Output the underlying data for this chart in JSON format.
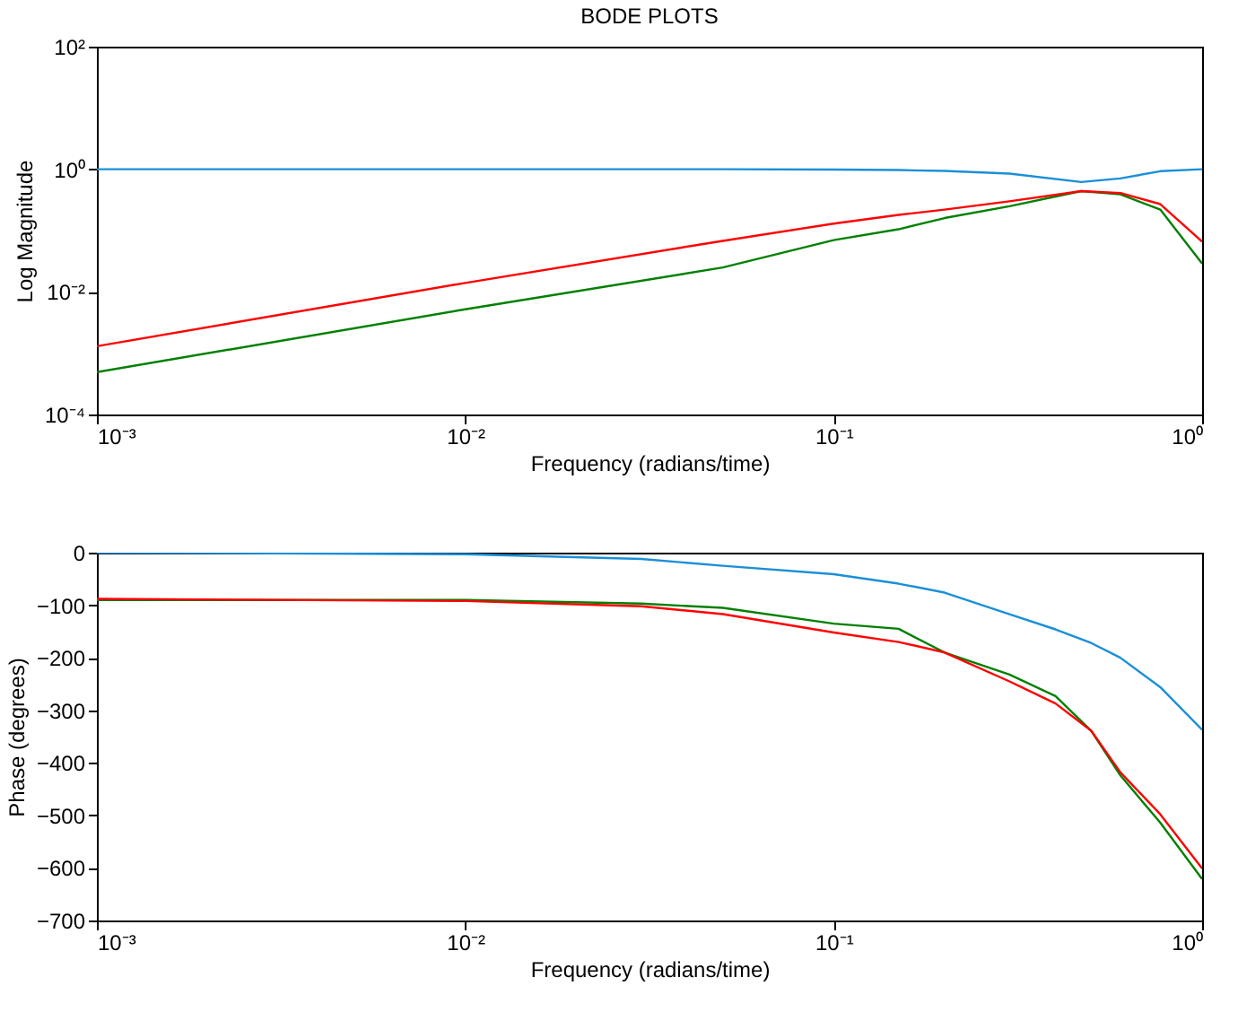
{
  "chart_data": [
    {
      "type": "line",
      "title": "BODE PLOTS",
      "xlabel": "Frequency (radians/time)",
      "ylabel": "Log Magnitude",
      "log": "xy",
      "grid": false,
      "marker": "none",
      "line_style": "solid",
      "xlim": [
        0.001,
        1
      ],
      "xticks": [
        {
          "value": 0.001,
          "label": "10⁻³"
        },
        {
          "value": 0.01,
          "label": "10⁻²"
        },
        {
          "value": 0.1,
          "label": "10⁻¹"
        },
        {
          "value": 1,
          "label": "10⁰"
        }
      ],
      "ylim": [
        0.0001,
        100
      ],
      "yticks": [
        {
          "value": 0.0001,
          "label": "10⁻⁴"
        },
        {
          "value": 0.01,
          "label": "10⁻²"
        },
        {
          "value": 1,
          "label": "10⁰"
        },
        {
          "value": 100,
          "label": "10²"
        }
      ],
      "x": [
        0.001,
        0.01,
        0.05,
        0.1,
        0.15,
        0.2,
        0.3,
        0.47,
        0.6,
        0.77,
        1
      ],
      "series": [
        {
          "color": "#1a8fd8",
          "values": [
            1,
            1,
            1,
            0.99,
            0.97,
            0.94,
            0.85,
            0.62,
            0.71,
            0.93,
            1
          ]
        },
        {
          "color": "#008000",
          "values": [
            0.00049,
            0.0052,
            0.025,
            0.07,
            0.105,
            0.16,
            0.25,
            0.44,
            0.39,
            0.22,
            0.029
          ]
        },
        {
          "color": "#ff0000",
          "values": [
            0.0013,
            0.014,
            0.068,
            0.13,
            0.18,
            0.22,
            0.3,
            0.44,
            0.41,
            0.27,
            0.066
          ]
        }
      ]
    },
    {
      "type": "line",
      "xlabel": "Frequency (radians/time)",
      "ylabel": "Phase (degrees)",
      "log": "x",
      "grid": false,
      "marker": "none",
      "line_style": "solid",
      "xlim": [
        0.001,
        1
      ],
      "xticks": [
        {
          "value": 0.001,
          "label": "10⁻³"
        },
        {
          "value": 0.01,
          "label": "10⁻²"
        },
        {
          "value": 0.1,
          "label": "10⁻¹"
        },
        {
          "value": 1,
          "label": "10⁰"
        }
      ],
      "ylim": [
        -700,
        0
      ],
      "yticks": [
        -700,
        -600,
        -500,
        -400,
        -300,
        -200,
        -100,
        0
      ],
      "x": [
        0.001,
        0.01,
        0.03,
        0.05,
        0.1,
        0.15,
        0.2,
        0.3,
        0.4,
        0.5,
        0.6,
        0.77,
        1
      ],
      "series": [
        {
          "color": "#1a8fd8",
          "values": [
            0,
            -3,
            -12,
            -25,
            -41,
            -59,
            -76,
            -117,
            -146,
            -172,
            -200,
            -256,
            -337
          ]
        },
        {
          "color": "#008000",
          "values": [
            -90,
            -90,
            -97,
            -105,
            -135,
            -145,
            -190,
            -232,
            -273,
            -339,
            -424,
            -514,
            -621
          ]
        },
        {
          "color": "#ff0000",
          "values": [
            -88,
            -92,
            -102,
            -117,
            -152,
            -170,
            -190,
            -245,
            -287,
            -339,
            -418,
            -498,
            -601
          ]
        }
      ]
    }
  ]
}
